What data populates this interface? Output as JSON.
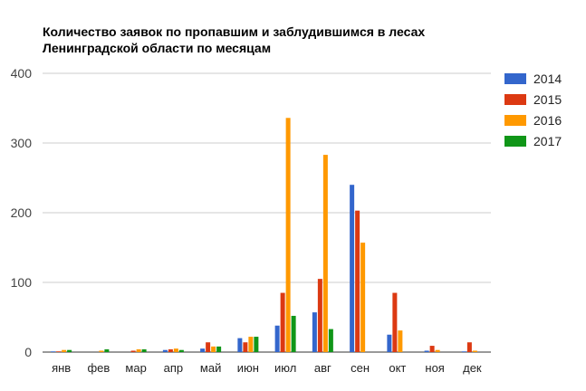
{
  "chart_data": {
    "type": "bar",
    "title_lines": [
      "Количество заявок по пропавшим и заблудившимся в лесах",
      "Ленинградской области по месяцам"
    ],
    "categories": [
      "янв",
      "фев",
      "мар",
      "апр",
      "май",
      "июн",
      "июл",
      "авг",
      "сен",
      "окт",
      "ноя",
      "дек"
    ],
    "ylim": [
      0,
      400
    ],
    "yticks": [
      0,
      100,
      200,
      300,
      400
    ],
    "grid": true,
    "legend_position": "right",
    "series": [
      {
        "name": "2014",
        "color": "#3366cc",
        "values": [
          1,
          0,
          0,
          3,
          5,
          20,
          38,
          57,
          240,
          25,
          2,
          1
        ]
      },
      {
        "name": "2015",
        "color": "#dc3912",
        "values": [
          1,
          0,
          2,
          4,
          14,
          14,
          85,
          105,
          203,
          85,
          9,
          14
        ]
      },
      {
        "name": "2016",
        "color": "#ff9900",
        "values": [
          3,
          2,
          4,
          5,
          8,
          22,
          336,
          283,
          157,
          31,
          3,
          2
        ]
      },
      {
        "name": "2017",
        "color": "#109618",
        "values": [
          3,
          4,
          4,
          3,
          8,
          22,
          52,
          33,
          0,
          0,
          0,
          0
        ]
      }
    ]
  }
}
